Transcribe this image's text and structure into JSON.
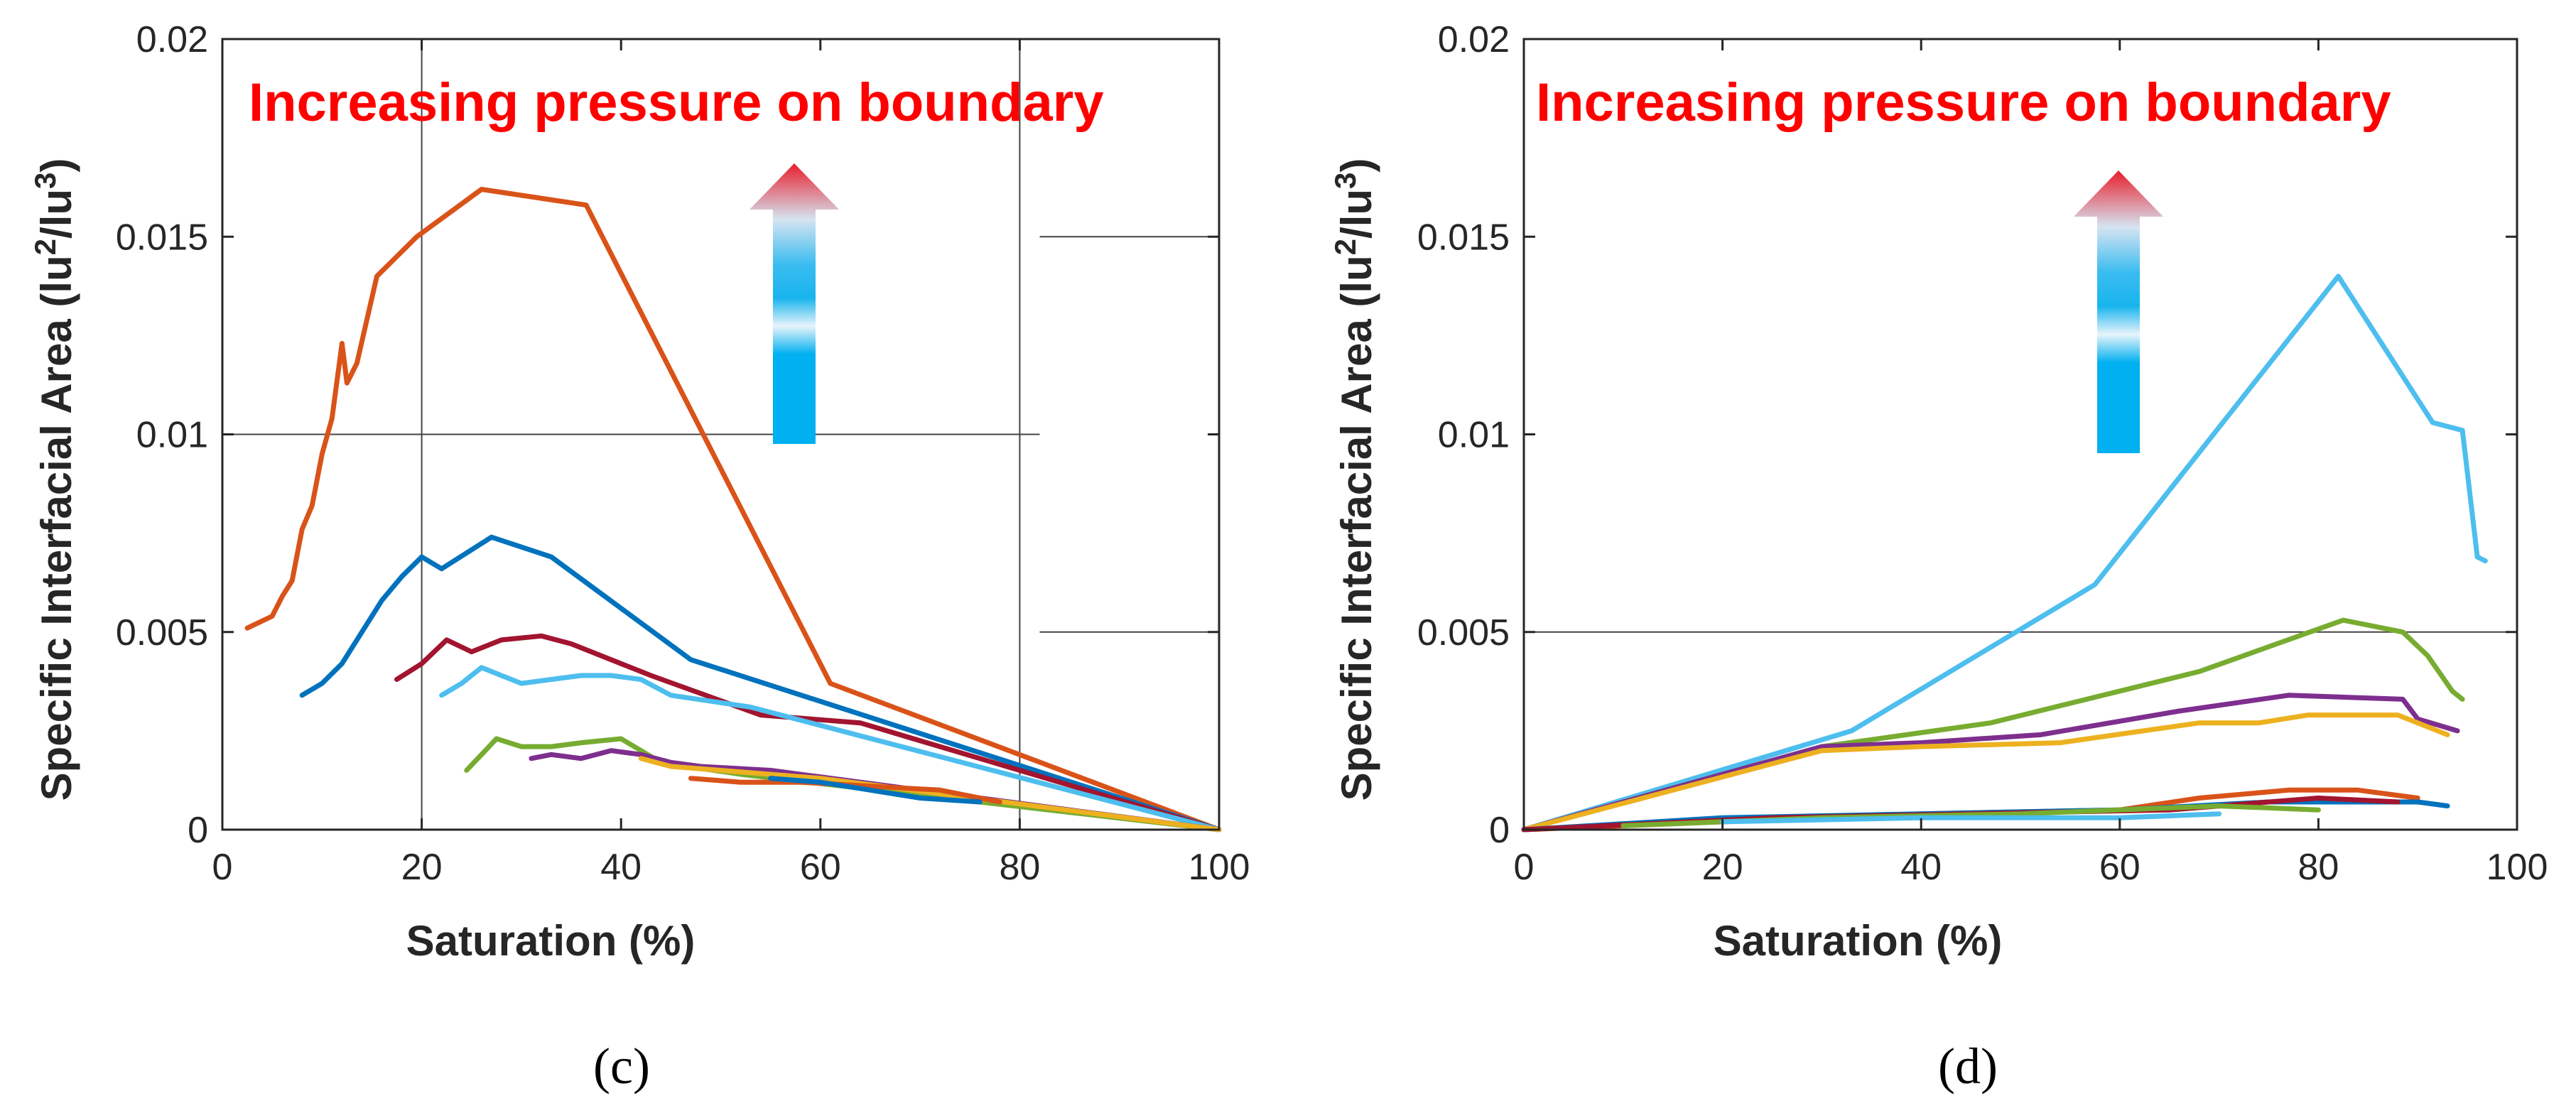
{
  "chart_data": [
    {
      "type": "line",
      "panel_label": "(c)",
      "xlabel": "Saturation (%)",
      "ylabel": "Specific Interfacial Area (lu²/lu³)",
      "xlim": [
        0,
        100
      ],
      "ylim": [
        0,
        0.02
      ],
      "xticks": [
        0,
        20,
        40,
        60,
        80,
        100
      ],
      "xtick_labels": [
        "0",
        "20",
        "40",
        "60",
        "80",
        "100"
      ],
      "yticks": [
        0,
        0.005,
        0.01,
        0.015,
        0.02
      ],
      "ytick_labels": [
        "0",
        "0.005",
        "0.01",
        "0.015",
        "0.02"
      ],
      "annotation": "Increasing pressure on boundary",
      "annotation_color": "#ff0000",
      "series": [
        {
          "name": "orange",
          "color": "#d95319",
          "x": [
            2.5,
            5,
            6,
            7,
            8,
            9,
            10,
            11,
            12,
            12.5,
            13.5,
            15.5,
            19.5,
            26,
            36.5,
            61,
            100
          ],
          "y": [
            0.0051,
            0.0054,
            0.0059,
            0.0063,
            0.0076,
            0.0082,
            0.0095,
            0.0104,
            0.0123,
            0.0113,
            0.0118,
            0.014,
            0.015,
            0.0162,
            0.0158,
            0.0037,
            0
          ]
        },
        {
          "name": "blue",
          "color": "#0072bd",
          "x": [
            8,
            10,
            12,
            14,
            16,
            18,
            20,
            22,
            27,
            33,
            47,
            100
          ],
          "y": [
            0.0034,
            0.0037,
            0.0042,
            0.005,
            0.0058,
            0.0064,
            0.0069,
            0.0066,
            0.0074,
            0.0069,
            0.0043,
            0
          ]
        },
        {
          "name": "dark-red",
          "color": "#a2142f",
          "x": [
            17.5,
            20,
            22.5,
            25,
            28,
            32,
            35,
            43,
            54,
            64,
            100
          ],
          "y": [
            0.0038,
            0.0042,
            0.0048,
            0.0045,
            0.0048,
            0.0049,
            0.0047,
            0.0039,
            0.0029,
            0.0027,
            0
          ]
        },
        {
          "name": "light-blue",
          "color": "#4dbeee",
          "x": [
            22,
            24,
            26,
            28,
            30,
            33,
            36,
            39,
            42,
            45,
            53,
            100
          ],
          "y": [
            0.0034,
            0.0037,
            0.0041,
            0.0039,
            0.0037,
            0.0038,
            0.0039,
            0.0039,
            0.0038,
            0.0034,
            0.0031,
            0
          ]
        },
        {
          "name": "green",
          "color": "#77ac30",
          "x": [
            24.5,
            26,
            27.5,
            30,
            33,
            36,
            40,
            44,
            52,
            100
          ],
          "y": [
            0.0015,
            0.0019,
            0.0023,
            0.0021,
            0.0021,
            0.0022,
            0.0023,
            0.0017,
            0.0014,
            0
          ]
        },
        {
          "name": "purple",
          "color": "#7e2f8e",
          "x": [
            31,
            33,
            36,
            39,
            42,
            45,
            48,
            55,
            100
          ],
          "y": [
            0.0018,
            0.0019,
            0.0018,
            0.002,
            0.0019,
            0.0017,
            0.0016,
            0.0015,
            0
          ]
        },
        {
          "name": "yellow",
          "color": "#edb120",
          "x": [
            42,
            45,
            50,
            60,
            100
          ],
          "y": [
            0.0018,
            0.0016,
            0.0015,
            0.0013,
            0
          ]
        },
        {
          "name": "orange-2",
          "color": "#d95319",
          "x": [
            47,
            52,
            58,
            65,
            72,
            78
          ],
          "y": [
            0.0013,
            0.0012,
            0.0012,
            0.0011,
            0.001,
            0.0007
          ]
        },
        {
          "name": "blue-2",
          "color": "#0072bd",
          "x": [
            55,
            60,
            65,
            70,
            76
          ],
          "y": [
            0.0013,
            0.0012,
            0.001,
            0.0008,
            0.0007
          ]
        }
      ]
    },
    {
      "type": "line",
      "panel_label": "(d)",
      "xlabel": "Saturation (%)",
      "ylabel": "Specific Interfacial Area (lu²/lu³)",
      "xlim": [
        0,
        100
      ],
      "ylim": [
        0,
        0.02
      ],
      "xticks": [
        0,
        20,
        40,
        60,
        80,
        100
      ],
      "xtick_labels": [
        "0",
        "20",
        "40",
        "60",
        "80",
        "100"
      ],
      "yticks": [
        0,
        0.005,
        0.01,
        0.015,
        0.02
      ],
      "ytick_labels": [
        "0",
        "0.005",
        "0.01",
        "0.015",
        "0.02"
      ],
      "annotation": "Increasing pressure on boundary",
      "annotation_color": "#ff0000",
      "series": [
        {
          "name": "light-blue",
          "color": "#4dbeee",
          "x": [
            0,
            33,
            57.5,
            82,
            91.5,
            94.5,
            96,
            96.8
          ],
          "y": [
            0,
            0.0025,
            0.0062,
            0.014,
            0.0103,
            0.0101,
            0.0069,
            0.0068
          ]
        },
        {
          "name": "green",
          "color": "#77ac30",
          "x": [
            0,
            30,
            47,
            68,
            82.5,
            88.5,
            91,
            93.5,
            94.5
          ],
          "y": [
            0,
            0.0021,
            0.0027,
            0.004,
            0.0053,
            0.005,
            0.0044,
            0.0035,
            0.0033
          ]
        },
        {
          "name": "purple",
          "color": "#7e2f8e",
          "x": [
            0,
            30,
            40,
            52,
            66,
            77,
            88.5,
            90,
            94
          ],
          "y": [
            0,
            0.0021,
            0.0022,
            0.0024,
            0.003,
            0.0034,
            0.0033,
            0.0028,
            0.0025
          ]
        },
        {
          "name": "yellow",
          "color": "#edb120",
          "x": [
            0,
            30,
            40,
            54,
            68,
            74,
            79,
            88,
            93
          ],
          "y": [
            0,
            0.002,
            0.0021,
            0.0022,
            0.0027,
            0.0027,
            0.0029,
            0.0029,
            0.0024
          ]
        },
        {
          "name": "orange",
          "color": "#d95319",
          "x": [
            0,
            20,
            40,
            60,
            68,
            77,
            84,
            90
          ],
          "y": [
            0,
            0.0002,
            0.0004,
            0.0005,
            0.0008,
            0.001,
            0.001,
            0.0008
          ]
        },
        {
          "name": "blue",
          "color": "#0072bd",
          "x": [
            0,
            20,
            40,
            60,
            75,
            90,
            93
          ],
          "y": [
            0,
            0.0003,
            0.0004,
            0.0005,
            0.0007,
            0.0007,
            0.0006
          ]
        },
        {
          "name": "dark-red",
          "color": "#a2142f",
          "x": [
            0,
            25,
            45,
            65,
            80,
            88
          ],
          "y": [
            0,
            0.0003,
            0.0004,
            0.0005,
            0.0008,
            0.0007
          ]
        },
        {
          "name": "green-2",
          "color": "#77ac30",
          "x": [
            10,
            30,
            50,
            70,
            80
          ],
          "y": [
            0.0001,
            0.0003,
            0.0004,
            0.0006,
            0.0005
          ]
        },
        {
          "name": "light-blue-2",
          "color": "#4dbeee",
          "x": [
            20,
            40,
            60,
            70
          ],
          "y": [
            0.0002,
            0.0003,
            0.0003,
            0.0004
          ]
        }
      ]
    }
  ]
}
